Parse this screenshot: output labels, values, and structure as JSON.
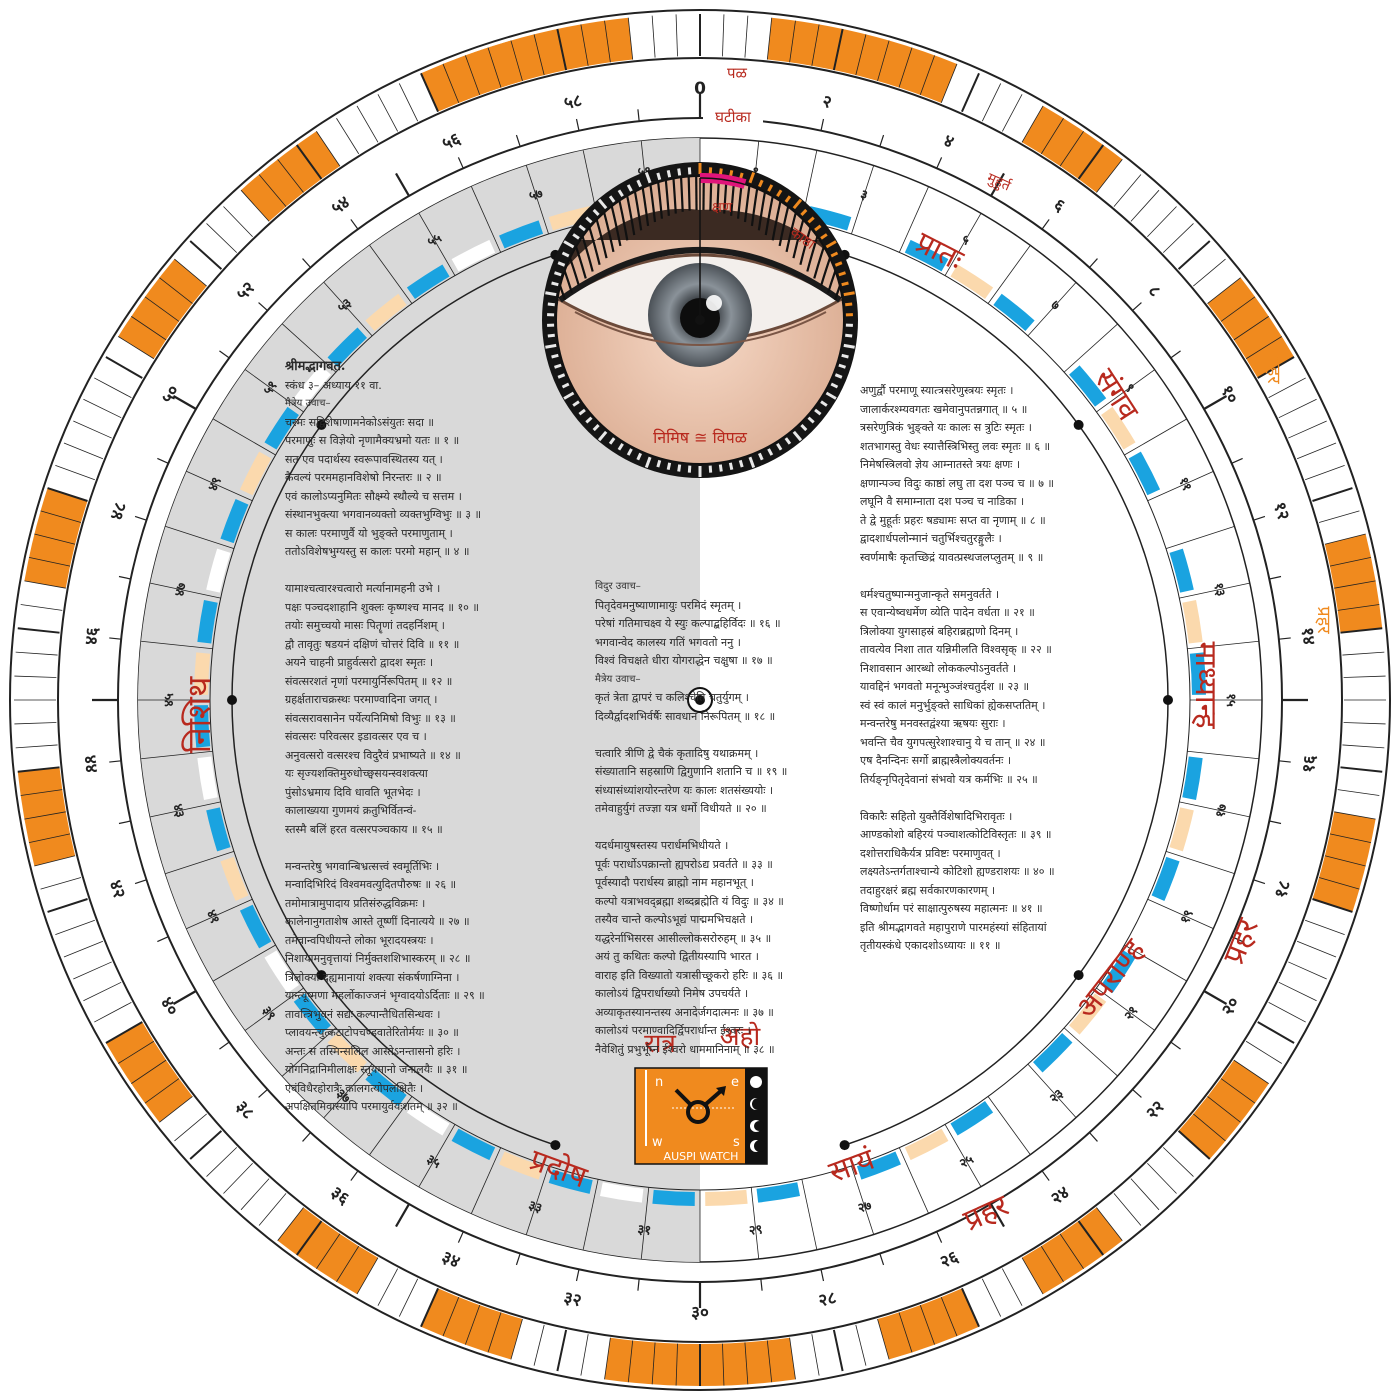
{
  "rings": {
    "pal": {
      "label": "पळ",
      "numbers": [
        "0",
        "२",
        "४",
        "६",
        "८",
        "१०",
        "१२",
        "१४",
        "१६",
        "१८",
        "२०",
        "२२",
        "२४",
        "२६",
        "२८",
        "३०",
        "३२",
        "३४",
        "३६",
        "३८",
        "४०",
        "४२",
        "४४",
        "४६",
        "४८",
        "५०",
        "५२",
        "५४",
        "५६",
        "५८"
      ]
    },
    "ghatika": {
      "label": "घटीका",
      "numbers": [
        "१",
        "३",
        "५",
        "७",
        "९",
        "११",
        "१३",
        "१५",
        "१७",
        "१९",
        "२१",
        "२३",
        "२५",
        "२७",
        "२९",
        "३१",
        "३३",
        "३५",
        "३७",
        "३९",
        "४१",
        "४३",
        "४५",
        "४७",
        "४९",
        "५१",
        "५३",
        "५५",
        "५७",
        "५९"
      ]
    },
    "muhurt_label": "मुहुर्त",
    "vipal_label": "विपळ",
    "kshan_label": "क्षण",
    "kashtha_label": "काष्ठा",
    "nimish_label": "निमिष ≅ विपळ"
  },
  "segments": {
    "day": [
      "प्रातः",
      "संगव",
      "माध्यान्ह",
      "अपराण्ह",
      "सायं"
    ],
    "night": [
      "प्रदोष",
      "निशिथ"
    ],
    "prahar": [
      "प्रहर",
      "प्रहर"
    ]
  },
  "side_labels": {
    "left": "रात्र",
    "right": "अहो",
    "vertical_right_1": "प्रहर",
    "vertical_right_2": "प्रहर"
  },
  "colors": {
    "orange": "#f08a1e",
    "blue": "#1aa3e0",
    "peach": "#fbd9ad",
    "grey": "#d9d9d9",
    "red": "#b8291e",
    "pink": "#e0147a"
  },
  "logo": {
    "text": "AUSPI WATCH",
    "letters": [
      "n",
      "e",
      "w",
      "s"
    ]
  },
  "center_icon": "target-icon",
  "texts": {
    "left": [
      "श्रीमद्भागवत.",
      "स्कंध ३– अध्याय ११ वा.",
      "मैत्रेय उवाच–",
      "चरमः सद्विशेषाणामनेकोऽसंयुतः सदा ॥",
      "परमाणुः स विज्ञेयो नृणामैक्यभ्रमो यतः ॥ १ ॥",
      "सत एव पदार्थस्य स्वरूपावस्थितस्य यत् ।",
      "कैवल्यं परममहानविशेषो निरन्तरः ॥ २ ॥",
      "एवं कालोऽप्यनुमितः सौक्ष्म्ये स्थौल्ये च सत्तम ।",
      "संस्थानभुक्त्या भगवानव्यक्तो व्यक्तभुग्विभुः ॥ ३ ॥",
      "स कालः परमाणुर्वै यो भुङ्क्ते परमाणुताम् ।",
      "ततोऽविशेषभुग्यस्तु स कालः परमो महान् ॥ ४ ॥",
      "",
      "यामाश्चत्वारश्चत्वारो मर्त्यानामहनी उभे ।",
      "पक्षः पञ्चदशाहानि शुक्लः कृष्णश्च मानद ॥ १० ॥",
      "तयोः समुच्चयो मासः पितॄणां तदहर्निशम् ।",
      "द्वौ तावृतुः षडयनं दक्षिणं चोत्तरं दिवि ॥ ११ ॥",
      "अयने चाहनी प्राहुर्वत्सरो द्वादश स्मृतः ।",
      "संवत्सरशतं नृणां परमायुर्निरूपितम् ॥ १२ ॥",
      "ग्रहर्क्षताराचक्रस्थः परमाण्वादिना जगत् ।",
      "संवत्सरावसानेन पर्येत्यनिमिषो विभुः ॥ १३ ॥",
      "संवत्सरः परिवत्सर इडावत्सर एव च ।",
      "अनुवत्सरो वत्सरश्च विदुरैवं प्रभाष्यते ॥ १४ ॥",
      "यः सृज्यशक्तिमुरुधोच्छ्वसयन्स्वशक्त्या",
      "पुंसोऽभ्रमाय दिवि धावति भूतभेदः ।",
      "कालाख्यया गुणमयं क्रतुभिर्वितन्वं-",
      "स्तस्मै बलिं हरत वत्सरपञ्चकाय ॥ १५ ॥",
      "",
      "मन्वन्तरेषु भगवान्बिभ्रत्सत्त्वं स्वमूर्तिभिः ।",
      "मन्वादिभिरिदं विश्वमवत्युदितपौरुषः ॥ २६ ॥",
      "तमोमात्रामुपादाय प्रतिसंरुद्धविक्रमः ।",
      "कालेनानुगताशेष आस्ते तूष्णीं दिनात्यये ॥ २७ ॥",
      "तमेवान्वपिधीयन्ते लोका भूरादयस्त्रयः ।",
      "निशायामनुवृत्तायां निर्मुक्तशशिभास्करम् ॥ २८ ॥",
      "त्रिलोक्यां दह्यमानायां शक्त्या संकर्षणाग्निना ।",
      "यान्त्यूष्मणा महर्लोकाज्जनं भृग्वादयोऽर्दिताः ॥ २९ ॥",
      "तावत्त्रिभुवनं सद्यः कल्पान्तैधितसिन्धवः ।",
      "प्लावयन्त्युत्कटाटोपचण्डवातेरितोर्मयः ॥ ३० ॥",
      "अन्तः स तस्मिन्सलिल आस्तेऽनन्तासनो हरिः ।",
      "योगनिद्रानिमीलाक्षः स्तूयमानो जनालयैः ॥ ३१ ॥",
      "एवंविधैरहोरात्रैः कालगत्योपलक्षितैः ।",
      "अपक्षितमिवास्यापि परमायुर्वयःशतम् ॥ ३२ ॥"
    ],
    "middle": [
      "विदुर उवाच–",
      "पितृदेवमनुष्याणामायुः परमिदं स्मृतम् ।",
      "परेषां गतिमाचक्ष्व ये स्युः कल्पाद्बहिर्विदः ॥ १६ ॥",
      "भगवान्वेद कालस्य गतिं भगवतो ननु ।",
      "विश्वं विचक्षते धीरा योगराद्धेन चक्षुषा ॥ १७ ॥",
      "मैत्रेय उवाच–",
      "कृतं त्रेता द्वापरं च कलिश्चेति चतुर्युगम् ।",
      "दिव्यैर्द्वादशभिर्वर्षैः सावधानं निरूपितम् ॥ १८ ॥",
      "",
      "चत्वारि त्रीणि द्वे चैकं कृतादिषु यथाक्रमम् ।",
      "संख्यातानि सहस्राणि द्विगुणानि शतानि च ॥ १९ ॥",
      "संध्यासंध्यांशयोरन्तरेण यः कालः शतसंख्ययोः ।",
      "तमेवाहुर्युगं तज्ज्ञा यत्र धर्मो विधीयते ॥ २० ॥",
      "",
      "यदर्धमायुषस्तस्य परार्धमभिधीयते ।",
      "पूर्वः परार्धोऽपक्रान्तो ह्यपरोऽद्य प्रवर्तते ॥ ३३ ॥",
      "पूर्वस्यादौ परार्धस्य ब्राह्मो नाम महानभूत् ।",
      "कल्पो यत्राभवद्ब्रह्मा शब्दब्रह्मेति यं विदुः ॥ ३४ ॥",
      "तस्यैव चान्ते कल्पोऽभूद्यं पाद्ममभिचक्षते ।",
      "यद्धरेर्नाभिसरस आसील्लोकसरोरुहम् ॥ ३५ ॥",
      "अयं तु कथितः कल्पो द्वितीयस्यापि भारत ।",
      "वाराह इति विख्यातो यत्रासीच्छूकरो हरिः ॥ ३६ ॥",
      "कालोऽयं द्विपरार्धाख्यो निमेष उपचर्यते ।",
      "अव्याकृतस्यानन्तस्य अनादेर्जगदात्मनः ॥ ३७ ॥",
      "कालोऽयं परमाण्वादिर्द्विपरार्धान्त ईश्वरः ।",
      "नैवेशितुं प्रभुर्भूम्न ईश्वरो धाममानिनाम् ॥ ३८ ॥"
    ],
    "right": [
      "अणुर्द्वौ परमाणू स्यात्त्रसरेणुस्त्रयः स्मृतः ।",
      "जालार्करश्म्यवगतः खमेवानुपतन्नगात् ॥ ५ ॥",
      "त्रसरेणुत्रिकं भुङ्क्ते यः कालः स त्रुटिः स्मृतः ।",
      "शतभागस्तु वेधः स्यात्तैस्त्रिभिस्तु लवः स्मृतः ॥ ६ ॥",
      "निमेषस्त्रिलवो ज्ञेय आम्नातस्ते त्रयः क्षणः ।",
      "क्षणान्पञ्च विदुः काष्ठां लघु ता दश पञ्च च ॥ ७ ॥",
      "लघूनि वै समाम्नाता दश पञ्च च नाडिका ।",
      "ते द्वे मुहूर्तः प्रहरः षड्यामः सप्त वा नृणाम् ॥ ८ ॥",
      "द्वादशार्धपलोन्मानं चतुर्भिश्चतुरङ्गुलैः ।",
      "स्वर्णमाषैः कृतच्छिद्रं यावत्प्रस्थजलप्लुतम् ॥ ९ ॥",
      "",
      "धर्मश्चतुष्पान्मनुजान्कृते समनुवर्तते ।",
      "स एवान्येष्वधर्मेण व्येति पादेन वर्धता ॥ २१ ॥",
      "त्रिलोक्या युगसाहस्रं बहिराब्रह्मणो दिनम् ।",
      "तावत्येव निशा तात यन्निमीलति विश्वसृक् ॥ २२ ॥",
      "निशावसान आरब्धो लोककल्पोऽनुवर्तते ।",
      "यावद्दिनं भगवतो मनून्भुञ्जंश्चतुर्दश ॥ २३ ॥",
      "स्वं स्वं कालं मनुर्भुङ्क्ते साधिकां ह्येकसप्ततिम् ।",
      "मन्वन्तरेषु मनवस्तद्वंश्या ऋषयः सुराः ।",
      "भवन्ति चैव युगपत्सुरेशाश्चानु ये च तान् ॥ २४ ॥",
      "एष दैनन्दिनः सर्गो ब्राह्मस्त्रैलोक्यवर्तनः ।",
      "तिर्यङ्नृपितृदेवानां संभवो यत्र कर्मभिः ॥ २५ ॥",
      "",
      "विकारैः सहितो युक्तैर्विशेषादिभिरावृतः ।",
      "आण्डकोशो बहिरयं पञ्चाशत्कोटिविस्तृतः ॥ ३९ ॥",
      "दशोत्तराधिकैर्यत्र प्रविष्टः परमाणुवत् ।",
      "लक्ष्यतेऽन्तर्गताश्चान्ये कोटिशो ह्यण्डराशयः ॥ ४० ॥",
      "तदाहुरक्षरं ब्रह्म सर्वकारणकारणम् ।",
      "विष्णोर्धाम परं साक्षात्पुरुषस्य महात्मनः ॥ ४१ ॥",
      "इति श्रीमद्भागवते महापुराणे पारमहंस्यां संहितायां",
      "तृतीयस्कंधे एकादशोऽध्यायः ॥ ११ ॥"
    ]
  }
}
